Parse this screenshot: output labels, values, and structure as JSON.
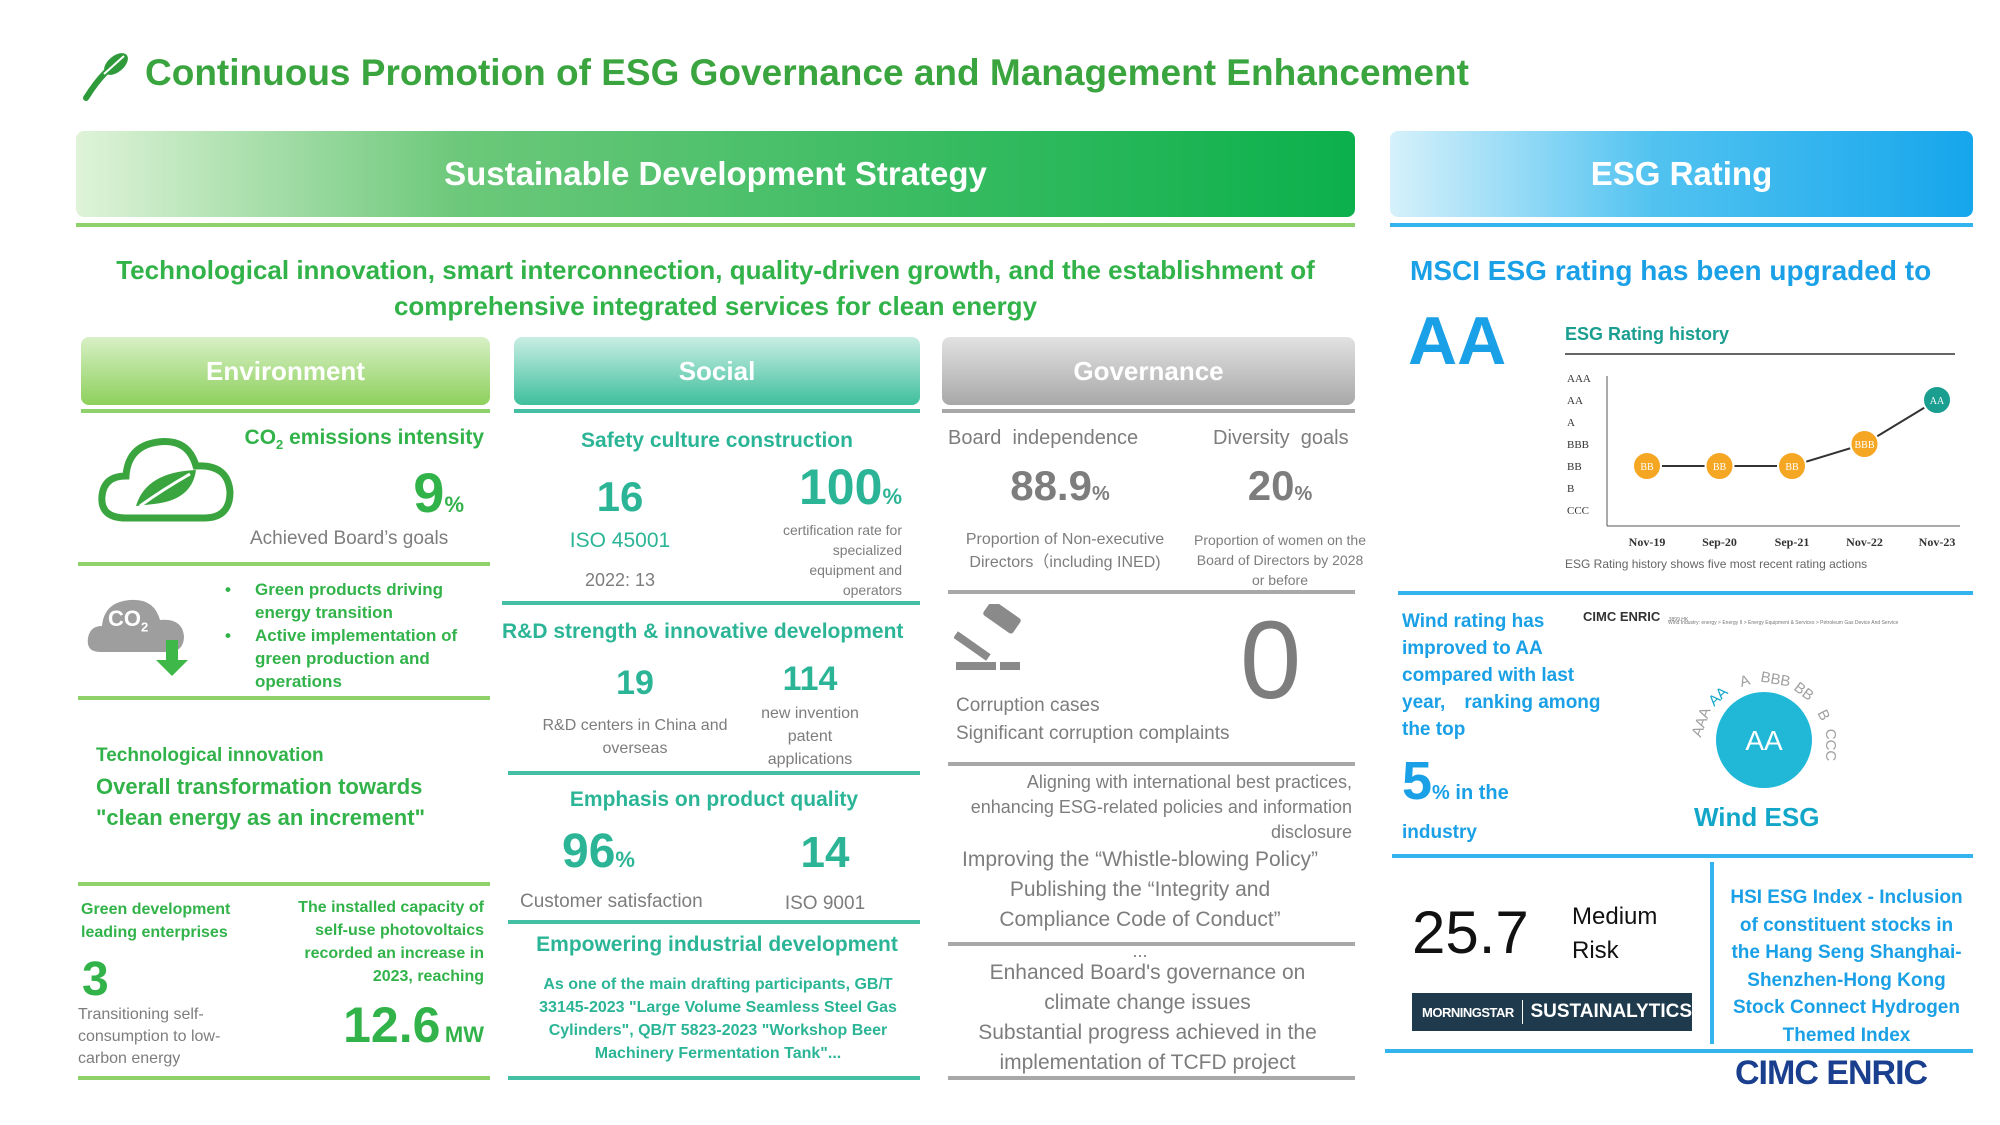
{
  "title": "Continuous Promotion of ESG Governance and Management Enhancement",
  "strategy": {
    "bar_label": "Sustainable Development Strategy",
    "tagline_1": "Technological innovation, smart interconnection, quality-driven growth, and the establishment of",
    "tagline_2": "comprehensive integrated services for clean energy"
  },
  "environment": {
    "header": "Environment",
    "co2_label": "CO",
    "co2_sub": "2",
    "co2_label_rest": " emissions intensity",
    "co2_value": "9",
    "co2_unit": "%",
    "co2_caption": "Achieved Board’s goals",
    "co2_icon_text": "CO",
    "co2_icon_sub": "2",
    "bullets": [
      "Green products driving energy transition",
      "Active implementation of green production and operations"
    ],
    "tech_label": "Technological innovation",
    "tech_line_1": "Overall transformation towards",
    "tech_line_2": "\"clean energy as an increment\"",
    "green_dev_label": "Green development leading enterprises",
    "green_dev_value": "3",
    "green_dev_caption": "Transitioning self-consumption to low-carbon energy",
    "pv_label": "The installed capacity of self-use photovoltaics recorded an increase in 2023, reaching",
    "pv_value": "12.6",
    "pv_unit": "MW"
  },
  "social": {
    "header": "Social",
    "safety_title": "Safety culture construction",
    "safety_value": "16",
    "safety_iso": "ISO 45001",
    "safety_prev": "2022: 13",
    "cert_value": "100",
    "cert_unit": "%",
    "cert_caption": "certification rate for specialized equipment and operators",
    "rd_title": "R&D strength & innovative development",
    "rd_centers_value": "19",
    "rd_centers_caption": "R&D centers in China and overseas",
    "patent_value": "114",
    "patent_caption": "new invention patent applications",
    "quality_title": "Emphasis on product quality",
    "satisfaction_value": "96",
    "satisfaction_unit": "%",
    "satisfaction_caption": "Customer satisfaction",
    "iso9001_value": "14",
    "iso9001_caption": "ISO 9001",
    "empower_title": "Empowering industrial development",
    "empower_text": "As one of the main drafting participants, GB/T 33145-2023 \"Large Volume Seamless Steel Gas Cylinders\", QB/T 5823-2023 \"Workshop Beer Machinery Fermentation Tank\"..."
  },
  "governance": {
    "header": "Governance",
    "board_label": "Board  independence",
    "board_value": "88.9",
    "board_unit": "%",
    "board_caption": "Proportion of Non-executive Directors（including INED)",
    "diversity_label": "Diversity  goals",
    "diversity_value": "20",
    "diversity_unit": "%",
    "diversity_caption": "Proportion of women on the Board of Directors by 2028 or before",
    "corruption_line_1": "Corruption cases",
    "corruption_line_2": "Significant corruption complaints",
    "corruption_value": "0",
    "align_text": "Aligning with international best practices, enhancing ESG-related policies and information disclosure",
    "whistle_1": "Improving the “Whistle-blowing Policy”",
    "whistle_2": "Publishing the “Integrity and",
    "whistle_3": "Compliance Code of Conduct”",
    "whistle_4": "...",
    "climate_1": "Enhanced Board's governance on",
    "climate_2": "climate change issues",
    "climate_3": "Substantial progress achieved in the",
    "climate_4": "implementation of TCFD project"
  },
  "esg_rating": {
    "bar_label": "ESG Rating",
    "msci_text": "MSCI ESG rating has been upgraded to",
    "msci_value": "AA",
    "wind_text": "Wind rating has improved to AA compared with last year,　ranking among the top",
    "wind_top_value": "5",
    "wind_top_unit": "%",
    "wind_top_suffix": " in the",
    "wind_industry": "industry",
    "wind_company": "CIMC ENRIC",
    "wind_ticker": "3899.HK",
    "wind_path": "Wind Industry: energy > Energy II > Energy Equipment & Services > Petroleum Gas Device And Service",
    "wind_badge": "AA",
    "wind_scale": [
      "AAA",
      "AA",
      "A",
      "BBB",
      "BB",
      "B",
      "CCC"
    ],
    "wind_logo_1": "Wind ESG",
    "sustain_value": "25.7",
    "sustain_risk_1": "Medium",
    "sustain_risk_2": "Risk",
    "morningstar": "MORNINGSTAR",
    "sustainalytics": "SUSTAINALYTICS",
    "hsi_text": "HSI ESG Index - Inclusion of constituent stocks in the Hang Seng Shanghai-Shenzhen-Hong Kong Stock Connect Hydrogen Themed Index"
  },
  "chart_data": {
    "type": "line",
    "title": "ESG Rating history",
    "categories": [
      "Nov-19",
      "Sep-20",
      "Sep-21",
      "Nov-22",
      "Nov-23"
    ],
    "y_levels": [
      "AAA",
      "AA",
      "A",
      "BBB",
      "BB",
      "B",
      "CCC"
    ],
    "values": [
      "BB",
      "BB",
      "BB",
      "BBB",
      "AA"
    ],
    "caption": "ESG Rating history shows five most recent rating actions",
    "colors": {
      "standard": "#f5a623",
      "leader": "#1a9e8f",
      "line": "#333333"
    }
  },
  "footer": {
    "logo": "CIMC ENRIC"
  },
  "colors": {
    "green": "#1fae3e",
    "teal": "#2bb596",
    "gray": "#7d7d7d",
    "blue": "#1aa0e6",
    "navy": "#1a3f8f"
  }
}
